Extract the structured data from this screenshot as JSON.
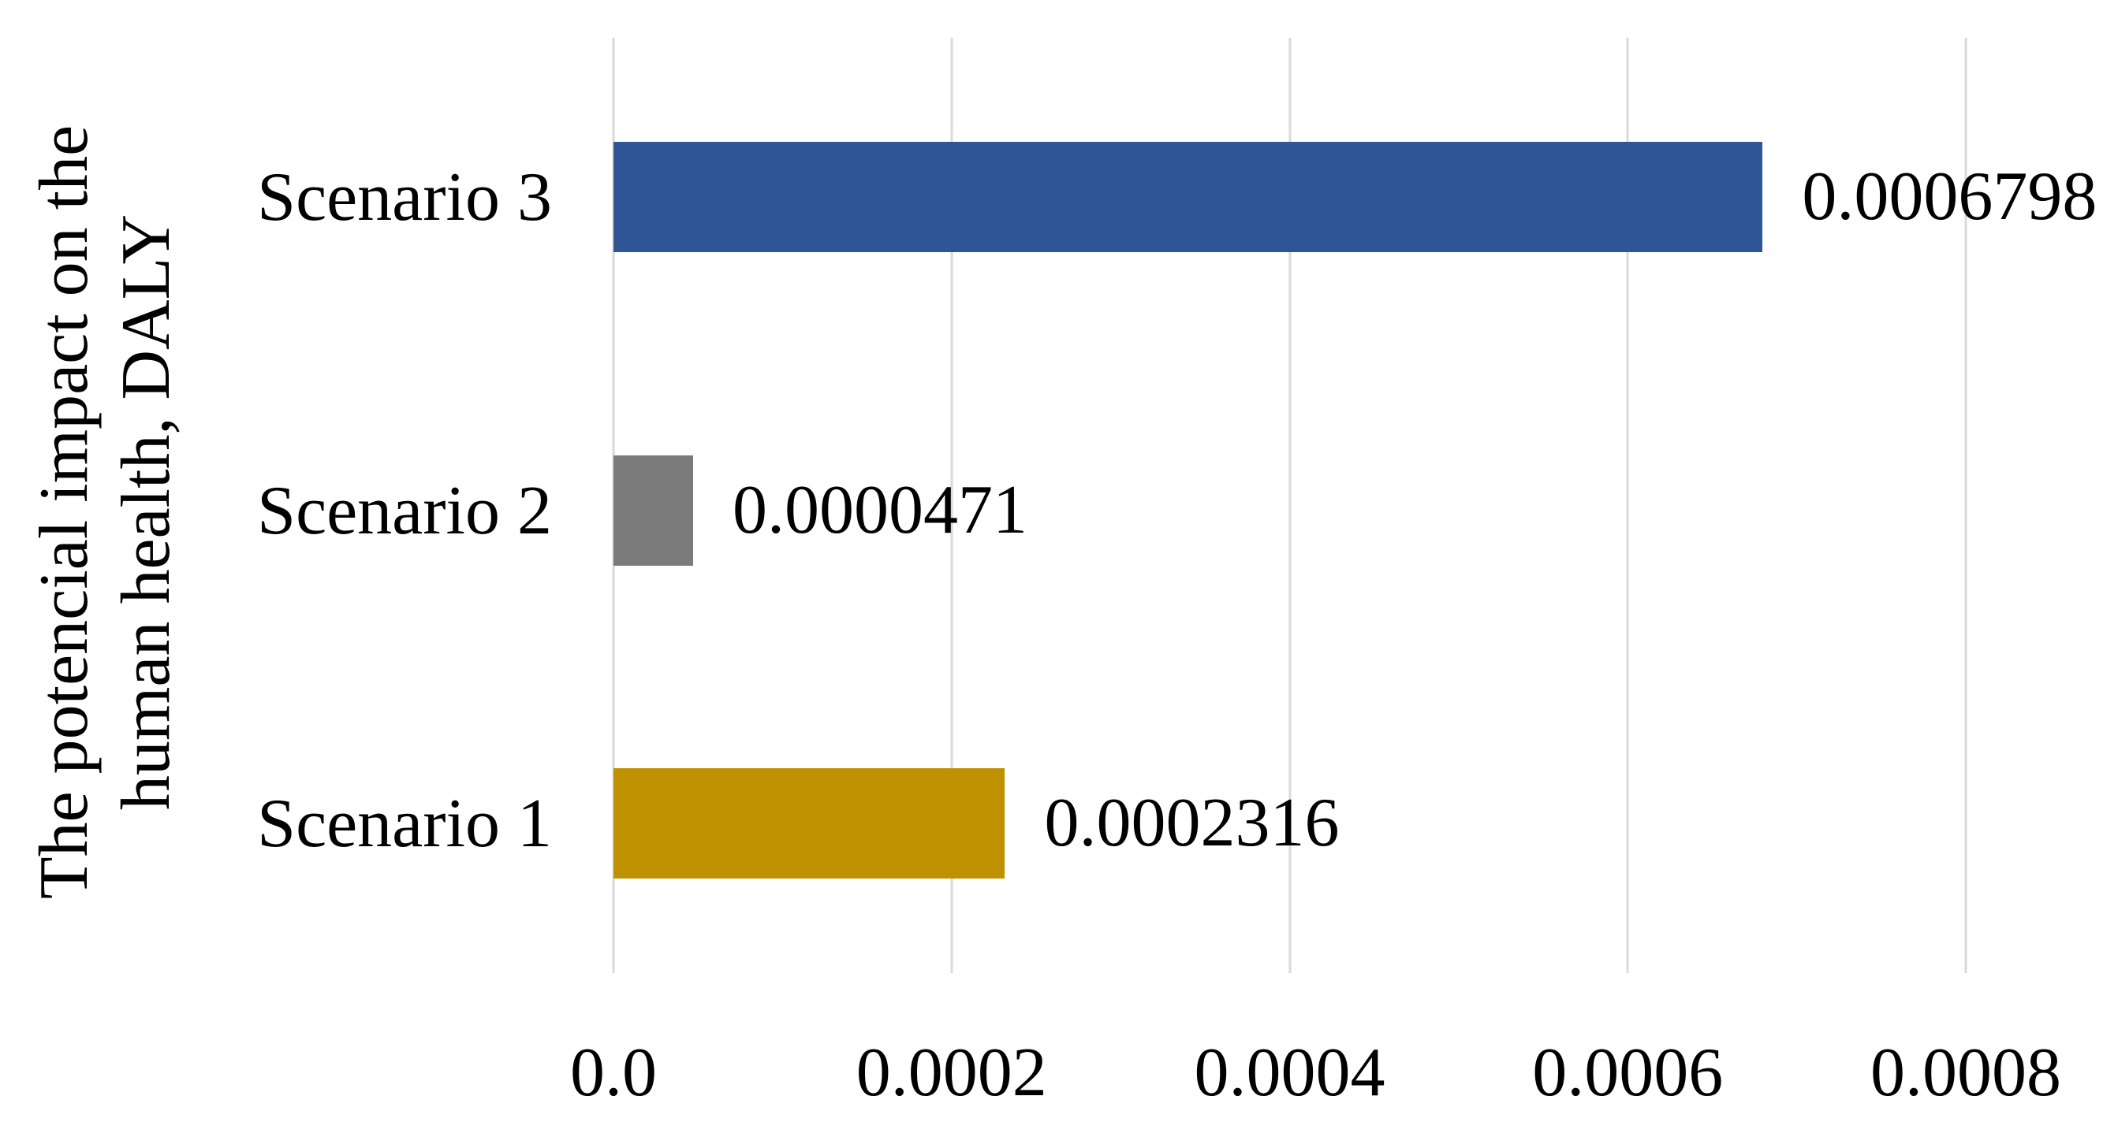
{
  "chart_data": {
    "type": "bar",
    "orientation": "horizontal",
    "title": "",
    "xlabel": "",
    "ylabel_lines": [
      "The potencial impact on the",
      "human health, DALY"
    ],
    "categories": [
      "Scenario 3",
      "Scenario 2",
      "Scenario 1"
    ],
    "values": [
      0.0006798,
      4.71e-05,
      0.0002316
    ],
    "value_labels": [
      "0.0006798",
      "0.0000471",
      "0.0002316"
    ],
    "bar_colors": [
      "#2F5596",
      "#7B7B7B",
      "#BF9000"
    ],
    "xlim": [
      0,
      0.0008
    ],
    "x_ticks": [
      "0.0",
      "0.0002",
      "0.0004",
      "0.0006",
      "0.0008"
    ],
    "grid": "vertical",
    "gridline_color": "#D9D9D9",
    "legend": "none",
    "text_color": "#000000",
    "background_color": "#FFFFFF"
  }
}
